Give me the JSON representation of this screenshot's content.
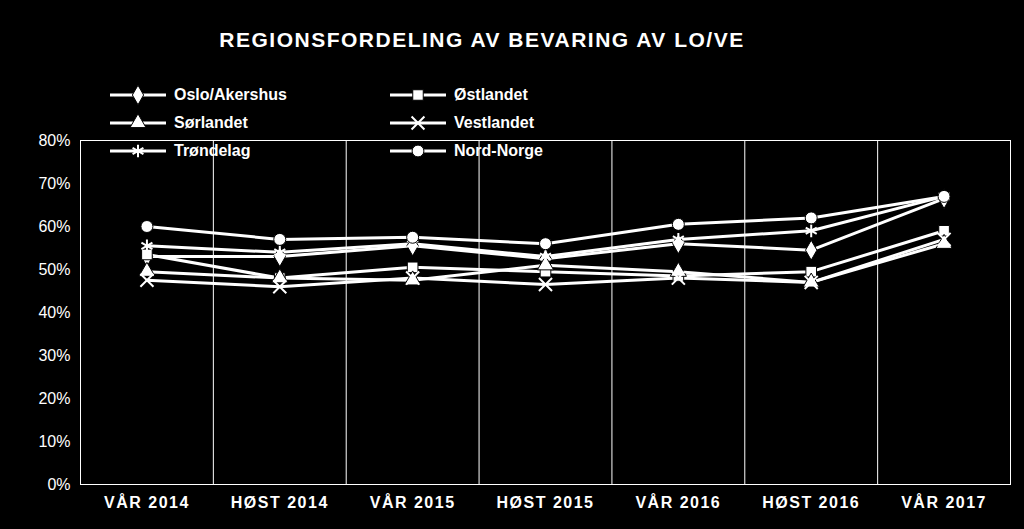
{
  "chart_data": {
    "type": "line",
    "title": "REGIONSFORDELING AV BEVARING AV LO/VE",
    "categories": [
      "VÅR 2014",
      "HØST 2014",
      "VÅR 2015",
      "HØST 2015",
      "VÅR 2016",
      "HØST 2016",
      "VÅR 2017"
    ],
    "series": [
      {
        "name": "Oslo/Akershus",
        "color": "#ffffff",
        "marker": "diamond",
        "values": [
          53,
          53,
          55.5,
          52.5,
          56,
          54.5,
          66.5
        ]
      },
      {
        "name": "Østlandet",
        "color": "#ffffff",
        "marker": "square",
        "values": [
          53.5,
          48,
          50.5,
          49.5,
          48.5,
          49.5,
          59
        ]
      },
      {
        "name": "Sørlandet",
        "color": "#ffffff",
        "marker": "triangle",
        "values": [
          49.5,
          48,
          47.5,
          51,
          49.5,
          47,
          56
        ]
      },
      {
        "name": "Vestlandet",
        "color": "#ffffff",
        "marker": "times",
        "values": [
          47.5,
          46,
          48,
          46.5,
          48,
          47,
          57
        ]
      },
      {
        "name": "Trøndelag",
        "color": "#ffffff",
        "marker": "asterisk",
        "values": [
          55.5,
          54,
          56,
          53,
          57,
          59,
          67
        ]
      },
      {
        "name": "Nord-Norge",
        "color": "#ffffff",
        "marker": "circle",
        "values": [
          60,
          57,
          57.5,
          56,
          60.5,
          62,
          67
        ]
      }
    ],
    "ylim": [
      0,
      80
    ],
    "yticks": [
      {
        "value": 0,
        "label": "0%"
      },
      {
        "value": 10,
        "label": "10%"
      },
      {
        "value": 20,
        "label": "20%"
      },
      {
        "value": 30,
        "label": "30%"
      },
      {
        "value": 40,
        "label": "40%"
      },
      {
        "value": 50,
        "label": "50%"
      },
      {
        "value": 60,
        "label": "60%"
      },
      {
        "value": 70,
        "label": "70%"
      },
      {
        "value": 80,
        "label": "80%"
      }
    ],
    "grid": true,
    "legend": "top-left"
  }
}
